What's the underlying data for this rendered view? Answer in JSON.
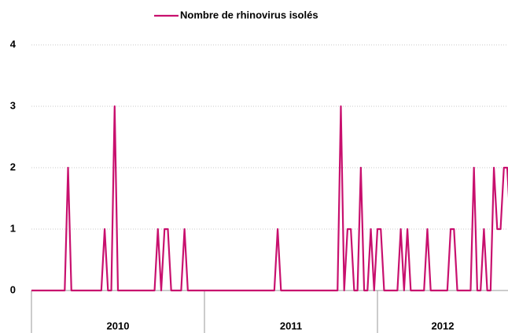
{
  "chart_data": {
    "type": "line",
    "series": [
      {
        "name": "Nombre de rhinovirus isolés",
        "color": "#c8106e",
        "values": [
          0,
          0,
          0,
          0,
          0,
          0,
          0,
          0,
          0,
          0,
          0,
          2,
          0,
          0,
          0,
          0,
          0,
          0,
          0,
          0,
          0,
          0,
          1,
          0,
          0,
          3,
          0,
          0,
          0,
          0,
          0,
          0,
          0,
          0,
          0,
          0,
          0,
          0,
          1,
          0,
          1,
          1,
          0,
          0,
          0,
          0,
          1,
          0,
          0,
          0,
          0,
          0,
          0,
          0,
          0,
          0,
          0,
          0,
          0,
          0,
          0,
          0,
          0,
          0,
          0,
          0,
          0,
          0,
          0,
          0,
          0,
          0,
          0,
          0,
          1,
          0,
          0,
          0,
          0,
          0,
          0,
          0,
          0,
          0,
          0,
          0,
          0,
          0,
          0,
          0,
          0,
          0,
          0,
          3,
          0,
          1,
          1,
          0,
          0,
          2,
          0,
          0,
          1,
          0,
          1,
          1,
          0,
          0,
          0,
          0,
          0,
          1,
          0,
          1,
          0,
          0,
          0,
          0,
          0,
          1,
          0,
          0,
          0,
          0,
          0,
          0,
          1,
          1,
          0,
          0,
          0,
          0,
          0,
          2,
          0,
          0,
          1,
          0,
          0,
          2,
          1,
          1,
          2,
          2,
          1
        ]
      }
    ],
    "categories": [
      null,
      null,
      null,
      null,
      null,
      null,
      null,
      null,
      null,
      null,
      null,
      null,
      null,
      null,
      null,
      null,
      null,
      null,
      null,
      null,
      null,
      null,
      null,
      null,
      null,
      null,
      null,
      null,
      null,
      null,
      null,
      null,
      null,
      null,
      null,
      null,
      null,
      null,
      null,
      null,
      null,
      null,
      null,
      null,
      null,
      null,
      null,
      null,
      null,
      null,
      null,
      null,
      null,
      null,
      null,
      null,
      null,
      null,
      null,
      null,
      null,
      null,
      null,
      null,
      null,
      null,
      null,
      null,
      null,
      null,
      null,
      null,
      null,
      null,
      null,
      null,
      null,
      null,
      null,
      null,
      null,
      null,
      null,
      null,
      null,
      null,
      null,
      null,
      null,
      null,
      null,
      null,
      null,
      null,
      null,
      null,
      null,
      null,
      null,
      null,
      null,
      null,
      null,
      null,
      null,
      null,
      null,
      null,
      null,
      null,
      null,
      null,
      null,
      null,
      null,
      null,
      null,
      null,
      null,
      null,
      null,
      null,
      null,
      null,
      null,
      null,
      null,
      null,
      null,
      null,
      null,
      null,
      null,
      null,
      null,
      null,
      null,
      null,
      null,
      null,
      null,
      null,
      null,
      null,
      null
    ],
    "x_groups": [
      {
        "label": "2010",
        "count": 52
      },
      {
        "label": "2011",
        "count": 52
      },
      {
        "label": "2012",
        "count": 41
      }
    ],
    "ylim": [
      0,
      4
    ],
    "yticks": [
      0,
      1,
      2,
      3,
      4
    ],
    "grid": true,
    "legend": "top"
  }
}
